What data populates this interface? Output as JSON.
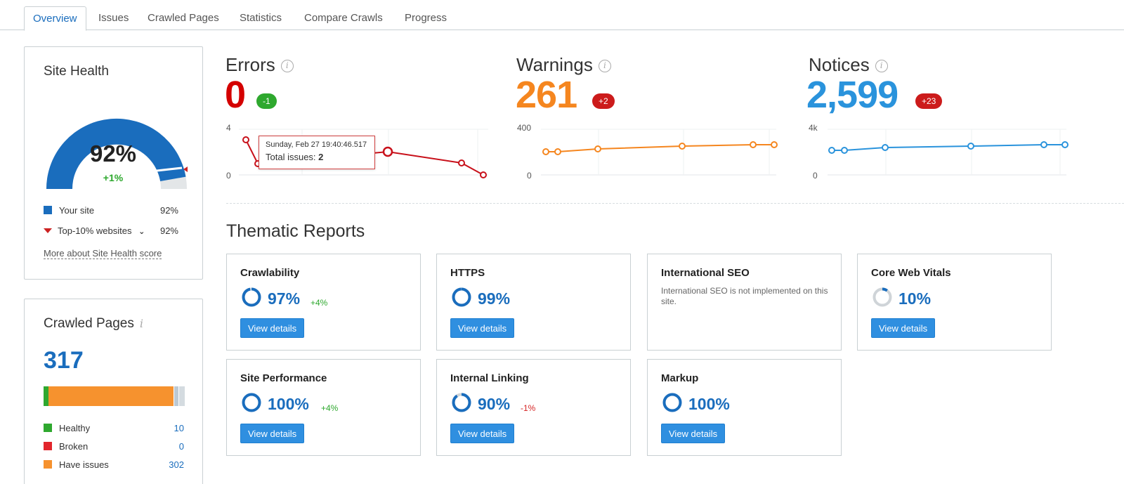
{
  "tabs": [
    "Overview",
    "Issues",
    "Crawled Pages",
    "Statistics",
    "Compare Crawls",
    "Progress"
  ],
  "site_health": {
    "title": "Site Health",
    "score": "92%",
    "score_value": 0.92,
    "delta": "+1%",
    "legend": [
      {
        "label": "Your site",
        "value": "92%",
        "color": "#1a6dbd"
      },
      {
        "label": "Top-10% websites",
        "value": "92%",
        "color": "#cc2222"
      }
    ],
    "more_link": "More about Site Health score"
  },
  "crawled_pages": {
    "title": "Crawled Pages",
    "total": "317",
    "legend": [
      {
        "label": "Healthy",
        "value": "10",
        "color": "#2fa82f"
      },
      {
        "label": "Broken",
        "value": "0",
        "color": "#e2262c"
      },
      {
        "label": "Have issues",
        "value": "302",
        "color": "#f6922e"
      }
    ]
  },
  "metrics": {
    "errors": {
      "label": "Errors",
      "value": "0",
      "delta": "-1",
      "color": "#d40000",
      "badge_color": "#2ea82e",
      "ymax": "4",
      "ymin": "0"
    },
    "warnings": {
      "label": "Warnings",
      "value": "261",
      "delta": "+2",
      "color": "#f5861f",
      "badge_color": "#cc1b1b",
      "ymax": "400",
      "ymin": "0"
    },
    "notices": {
      "label": "Notices",
      "value": "2,599",
      "delta": "+23",
      "color": "#2a93dc",
      "badge_color": "#cc1b1b",
      "ymax": "4k",
      "ymin": "0"
    }
  },
  "tooltip": {
    "date": "Sunday, Feb 27 19:40:46.517",
    "text": "Total issues: ",
    "value": "2"
  },
  "thematic": {
    "title": "Thematic Reports",
    "reports": [
      {
        "title": "Crawlability",
        "pct": "97%",
        "delta": "+4%",
        "button": "View details"
      },
      {
        "title": "HTTPS",
        "pct": "99%",
        "delta": "",
        "button": "View details"
      },
      {
        "title": "International SEO",
        "note": "International SEO is not implemented on this site."
      },
      {
        "title": "Core Web Vitals",
        "pct": "10%",
        "delta": "",
        "button": "View details"
      },
      {
        "title": "Site Performance",
        "pct": "100%",
        "delta": "+4%",
        "button": "View details"
      },
      {
        "title": "Internal Linking",
        "pct": "90%",
        "delta": "-1%",
        "button": "View details"
      },
      {
        "title": "Markup",
        "pct": "100%",
        "delta": "",
        "button": "View details"
      }
    ]
  },
  "colors": {
    "accent": "#1a6dbd",
    "button": "#2f8fe0",
    "positive": "#2ea82e",
    "negative": "#d62626"
  }
}
